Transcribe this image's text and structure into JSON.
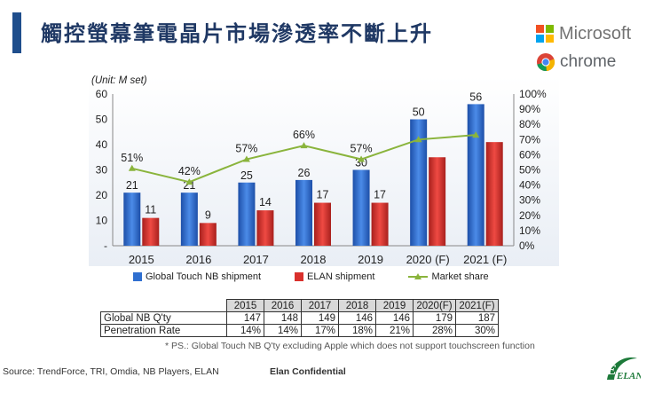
{
  "page": {
    "title": "觸控螢幕筆電晶片市場滲透率不斷上升",
    "logos": {
      "microsoft": "Microsoft",
      "chrome": "chrome"
    },
    "note": "* PS.: Global Touch NB Q'ty excluding Apple which does not support touchscreen function",
    "source": "Source: TrendForce, TRI, Omdia, NB Players, ELAN",
    "confidential": "Elan Confidential",
    "colors": {
      "title": "#1f3864",
      "accent_bar": "#1f4e8c",
      "global_bar": "#2f6fd0",
      "elan_bar": "#d9302c",
      "share_line": "#8ab43c"
    }
  },
  "chart_data": {
    "type": "bar",
    "unit_label": "(Unit: M set)",
    "categories": [
      "2015",
      "2016",
      "2017",
      "2018",
      "2019",
      "2020 (F)",
      "2021 (F)"
    ],
    "series": [
      {
        "name": "Global Touch NB shipment",
        "type": "bar",
        "axis": "left",
        "values": [
          21,
          21,
          25,
          26,
          30,
          50,
          56
        ]
      },
      {
        "name": "ELAN shipment",
        "type": "bar",
        "axis": "left",
        "values": [
          11,
          9,
          14,
          17,
          17,
          35,
          41
        ]
      },
      {
        "name": "Market share",
        "type": "line",
        "axis": "right",
        "values": [
          51,
          42,
          57,
          66,
          57,
          70,
          73
        ]
      }
    ],
    "data_labels": {
      "global": [
        "21",
        "21",
        "25",
        "26",
        "30",
        "50",
        "56"
      ],
      "elan": [
        "11",
        "9",
        "14",
        "17",
        "17",
        "",
        ""
      ],
      "share": [
        "51%",
        "42%",
        "57%",
        "66%",
        "57%",
        "",
        ""
      ]
    },
    "ylim_left": [
      0,
      60
    ],
    "yticks_left": [
      "-",
      "10",
      "20",
      "30",
      "40",
      "50",
      "60"
    ],
    "ylim_right": [
      0,
      100
    ],
    "yticks_right": [
      "0%",
      "10%",
      "20%",
      "30%",
      "40%",
      "50%",
      "60%",
      "70%",
      "80%",
      "90%",
      "100%"
    ],
    "legend": [
      "Global Touch NB shipment",
      "ELAN shipment",
      "Market share"
    ],
    "legend_position": "bottom"
  },
  "table": {
    "headers": [
      "2015",
      "2016",
      "2017",
      "2018",
      "2019",
      "2020(F)",
      "2021(F)"
    ],
    "rows": [
      {
        "label": "Global NB Q'ty",
        "values": [
          "147",
          "148",
          "149",
          "146",
          "146",
          "179",
          "187"
        ]
      },
      {
        "label": "Penetration Rate",
        "values": [
          "14%",
          "14%",
          "17%",
          "18%",
          "21%",
          "28%",
          "30%"
        ]
      }
    ]
  }
}
